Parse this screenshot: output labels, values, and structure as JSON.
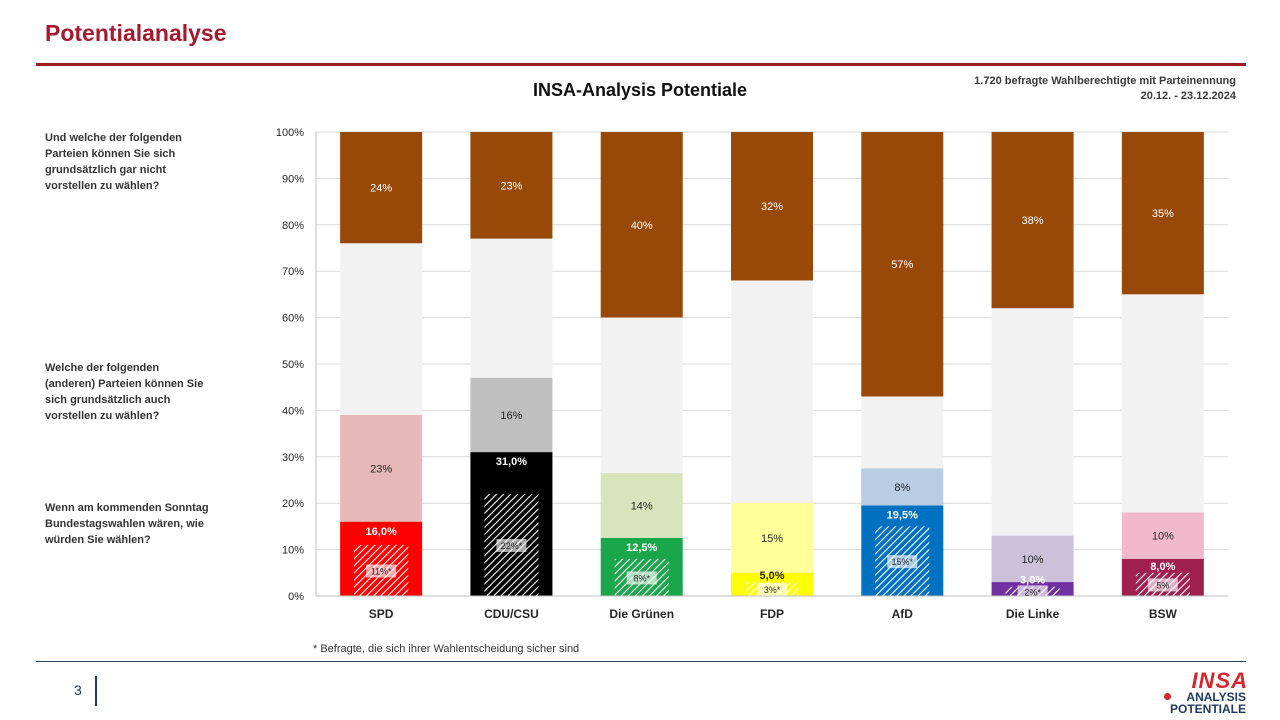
{
  "page": {
    "title": "Potentialanalyse",
    "page_number": "3",
    "footnote": "* Befragte, die sich ihrer Wahlentscheidung sicher sind",
    "sample_note": "1.720 befragte Wahlberechtigte mit Parteinennung",
    "date_range": "20.12. - 23.12.2024",
    "logo": {
      "main": "INSA",
      "line1": "ANALYSIS",
      "line2": "POTENTIALE"
    }
  },
  "questions": {
    "not_vote": "Und welche der folgenden Parteien können Sie sich grundsätzlich gar nicht vorstellen zu wählen?",
    "also_vote": "Welche der folgenden (anderen) Parteien können Sie sich grundsätzlich auch vorstellen zu wählen?",
    "vote": "Wenn am kommenden Sonntag Bundestagswahlen wären, wie würden Sie wählen?"
  },
  "chart_data": {
    "type": "bar",
    "stacked": true,
    "title": "INSA-Analysis Potentiale",
    "ylim": [
      0,
      100
    ],
    "yticks": [
      "0%",
      "10%",
      "20%",
      "30%",
      "40%",
      "50%",
      "60%",
      "70%",
      "80%",
      "90%",
      "100%"
    ],
    "grid": true,
    "categories": [
      "SPD",
      "CDU/CSU",
      "Die Grünen",
      "FDP",
      "AfD",
      "Die Linke",
      "BSW"
    ],
    "colors": {
      "party": [
        "#ff0000",
        "#000000",
        "#1aa64a",
        "#ffff00",
        "#0070c0",
        "#7030a0",
        "#a0204e"
      ],
      "potential": [
        "#e6b8b7",
        "#bfbfbf",
        "#d8e4bc",
        "#ffff99",
        "#b8cce4",
        "#ccc0da",
        "#f2b8cc"
      ],
      "middle": "#f2f2f2",
      "rejection": "#984807"
    },
    "series": [
      {
        "key": "vote",
        "values": [
          16.0,
          31.0,
          12.5,
          5.0,
          19.5,
          3.0,
          8.0
        ],
        "labels": [
          "16,0%",
          "31,0%",
          "12,5%",
          "5,0%",
          "19,5%",
          "3,0%",
          "8,0%"
        ]
      },
      {
        "key": "certain",
        "values": [
          11,
          22,
          8,
          3,
          15,
          2,
          5
        ],
        "labels": [
          "11%*",
          "22%*",
          "8%*",
          "3%*",
          "15%*",
          "2%*",
          "5%"
        ]
      },
      {
        "key": "potential",
        "values": [
          23,
          16,
          14,
          15,
          8,
          10,
          10
        ],
        "labels": [
          "23%",
          "16%",
          "14%",
          "15%",
          "8%",
          "10%",
          "10%"
        ]
      },
      {
        "key": "not_vote",
        "values": [
          24,
          23,
          40,
          32,
          57,
          38,
          35
        ],
        "labels": [
          "24%",
          "23%",
          "40%",
          "32%",
          "57%",
          "38%",
          "35%"
        ]
      }
    ]
  }
}
